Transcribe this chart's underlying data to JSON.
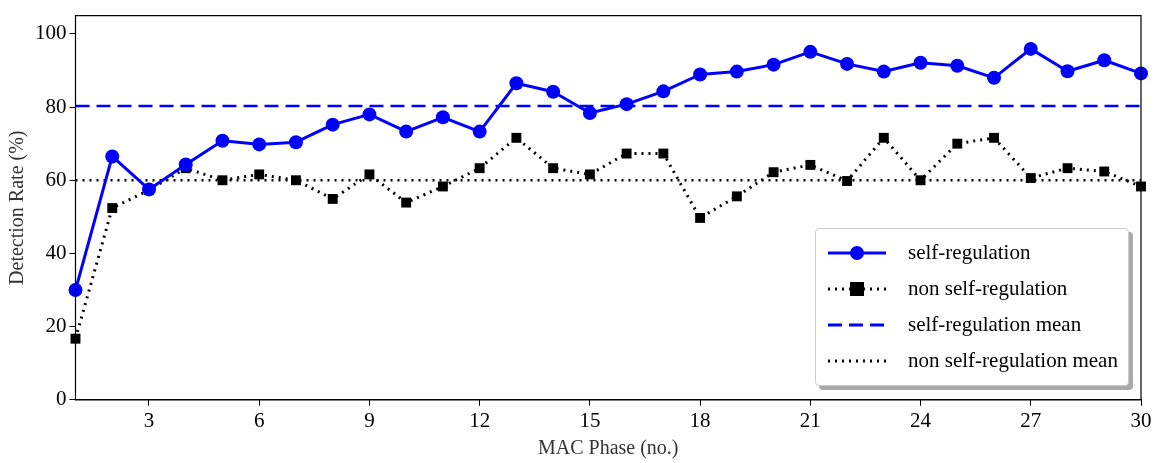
{
  "chart_data": {
    "type": "line",
    "xlabel": "MAC Phase (no.)",
    "ylabel": "Detection Rate (%)",
    "x": [
      1,
      2,
      3,
      4,
      5,
      6,
      7,
      8,
      9,
      10,
      11,
      12,
      13,
      14,
      15,
      16,
      17,
      18,
      19,
      20,
      21,
      22,
      23,
      24,
      25,
      26,
      27,
      28,
      29,
      30
    ],
    "series": [
      {
        "name": "self-regulation",
        "color": "#0000ff",
        "marker": "circle",
        "line_style": "solid",
        "values": [
          30,
          66.5,
          57.5,
          64.3,
          70.8,
          69.8,
          70.4,
          75.2,
          78,
          73.3,
          77.2,
          73.3,
          86.5,
          84.2,
          78.4,
          80.8,
          84.3,
          88.9,
          89.7,
          91.6,
          95.1,
          91.8,
          89.7,
          92.1,
          91.3,
          88,
          95.9,
          89.8,
          92.8,
          89.2
        ]
      },
      {
        "name": "non self-regulation",
        "color": "#000000",
        "marker": "square",
        "line_style": "dotted",
        "values": [
          16.7,
          52.4,
          57.3,
          63.3,
          60,
          61.6,
          60,
          54.9,
          61.6,
          53.9,
          58.3,
          63.3,
          71.6,
          63.3,
          61.6,
          67.3,
          67.3,
          49.7,
          55.6,
          62.2,
          64.2,
          59.8,
          71.6,
          60,
          70,
          71.6,
          60.6,
          63.3,
          62.4,
          58.3
        ]
      }
    ],
    "ref_lines": [
      {
        "axis": "y",
        "value": 80.3,
        "label": "self-regulation mean",
        "color": "#0000ff",
        "line_style": "dashed"
      },
      {
        "axis": "y",
        "value": 60,
        "label": "non self-regulation mean",
        "color": "#000000",
        "line_style": "dotted"
      }
    ],
    "xlim": [
      1,
      30
    ],
    "xticks": [
      3,
      6,
      9,
      12,
      15,
      18,
      21,
      24,
      27,
      30
    ],
    "ylim": [
      0,
      105
    ],
    "yticks": [
      0,
      20,
      40,
      60,
      80,
      100
    ],
    "grid": false,
    "legend": "bottom right"
  }
}
